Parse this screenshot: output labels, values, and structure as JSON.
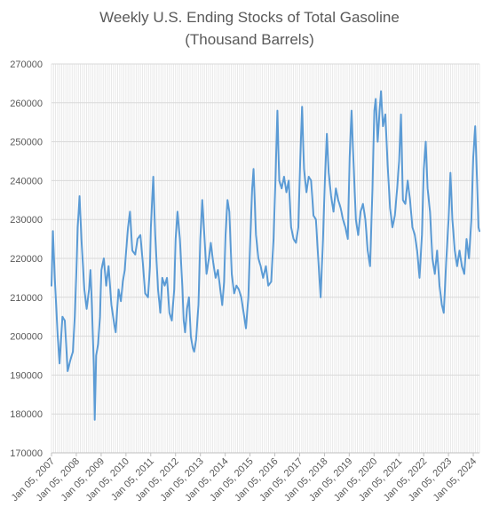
{
  "chart_data": {
    "type": "line",
    "title": "Weekly U.S. Ending Stocks of Total Gasoline",
    "subtitle": "(Thousand Barrels)",
    "xlabel": "",
    "ylabel": "",
    "ylim": [
      170000,
      270000
    ],
    "y_ticks": [
      "170000",
      "180000",
      "190000",
      "200000",
      "210000",
      "220000",
      "230000",
      "240000",
      "250000",
      "260000",
      "270000"
    ],
    "x_tick_labels": [
      "Jan 05, 2007",
      "Jan 05, 2008",
      "Jan 05, 2009",
      "Jan 05, 2010",
      "Jan 05, 2011",
      "Jan 05, 2012",
      "Jan 05, 2013",
      "Jan 05, 2014",
      "Jan 05, 2015",
      "Jan 05, 2016",
      "Jan 05, 2017",
      "Jan 05, 2018",
      "Jan 05, 2019",
      "Jan 05, 2020",
      "Jan 05, 2021",
      "Jan 05, 2022",
      "Jan 05, 2023",
      "Jan 05, 2024"
    ],
    "xlim": [
      "2007-01-05",
      "2024-04-05"
    ],
    "grid": true,
    "line_color": "#5b9bd5",
    "series": [
      {
        "points": [
          [
            "2007-01-05",
            213000
          ],
          [
            "2007-01-26",
            227000
          ],
          [
            "2007-02-23",
            215000
          ],
          [
            "2007-04-06",
            200000
          ],
          [
            "2007-05-04",
            193000
          ],
          [
            "2007-06-15",
            205000
          ],
          [
            "2007-07-20",
            204000
          ],
          [
            "2007-08-31",
            191000
          ],
          [
            "2007-10-12",
            194000
          ],
          [
            "2007-11-16",
            196000
          ],
          [
            "2007-12-14",
            205000
          ],
          [
            "2008-01-04",
            215000
          ],
          [
            "2008-01-25",
            228000
          ],
          [
            "2008-02-22",
            236000
          ],
          [
            "2008-03-21",
            225000
          ],
          [
            "2008-05-02",
            212000
          ],
          [
            "2008-06-06",
            207000
          ],
          [
            "2008-07-11",
            212000
          ],
          [
            "2008-08-01",
            217000
          ],
          [
            "2008-08-22",
            208000
          ],
          [
            "2008-09-19",
            192000
          ],
          [
            "2008-10-03",
            178500
          ],
          [
            "2008-10-24",
            195000
          ],
          [
            "2008-11-21",
            198000
          ],
          [
            "2008-12-19",
            205000
          ],
          [
            "2009-01-09",
            217000
          ],
          [
            "2009-02-13",
            220000
          ],
          [
            "2009-03-20",
            213000
          ],
          [
            "2009-04-24",
            218000
          ],
          [
            "2009-06-05",
            208000
          ],
          [
            "2009-07-17",
            203000
          ],
          [
            "2009-08-07",
            201000
          ],
          [
            "2009-09-18",
            212000
          ],
          [
            "2009-10-23",
            209000
          ],
          [
            "2009-11-20",
            214000
          ],
          [
            "2009-12-18",
            217000
          ],
          [
            "2010-01-08",
            222000
          ],
          [
            "2010-02-05",
            228000
          ],
          [
            "2010-03-05",
            232000
          ],
          [
            "2010-04-09",
            222000
          ],
          [
            "2010-05-21",
            221000
          ],
          [
            "2010-06-25",
            225000
          ],
          [
            "2010-08-06",
            226000
          ],
          [
            "2010-09-10",
            219000
          ],
          [
            "2010-10-15",
            211000
          ],
          [
            "2010-11-26",
            210000
          ],
          [
            "2010-12-24",
            218000
          ],
          [
            "2011-01-07",
            228000
          ],
          [
            "2011-02-11",
            241000
          ],
          [
            "2011-03-11",
            226000
          ],
          [
            "2011-04-22",
            212000
          ],
          [
            "2011-05-27",
            206000
          ],
          [
            "2011-06-24",
            215000
          ],
          [
            "2011-07-29",
            213000
          ],
          [
            "2011-09-02",
            215000
          ],
          [
            "2011-10-07",
            206000
          ],
          [
            "2011-11-11",
            204000
          ],
          [
            "2011-12-16",
            212000
          ],
          [
            "2012-01-06",
            225000
          ],
          [
            "2012-02-03",
            232000
          ],
          [
            "2012-03-09",
            225000
          ],
          [
            "2012-04-13",
            213000
          ],
          [
            "2012-05-04",
            204000
          ],
          [
            "2012-05-25",
            201000
          ],
          [
            "2012-06-22",
            207000
          ],
          [
            "2012-07-20",
            210000
          ],
          [
            "2012-08-17",
            200000
          ],
          [
            "2012-09-14",
            197000
          ],
          [
            "2012-10-05",
            196000
          ],
          [
            "2012-11-02",
            199000
          ],
          [
            "2012-12-07",
            208000
          ],
          [
            "2013-01-04",
            225000
          ],
          [
            "2013-02-01",
            235000
          ],
          [
            "2013-02-22",
            229000
          ],
          [
            "2013-04-05",
            216000
          ],
          [
            "2013-05-10",
            220000
          ],
          [
            "2013-06-07",
            224000
          ],
          [
            "2013-07-12",
            219000
          ],
          [
            "2013-08-16",
            215000
          ],
          [
            "2013-09-20",
            217000
          ],
          [
            "2013-10-25",
            212000
          ],
          [
            "2013-11-22",
            208000
          ],
          [
            "2013-12-20",
            214000
          ],
          [
            "2014-01-10",
            226000
          ],
          [
            "2014-02-07",
            235000
          ],
          [
            "2014-03-07",
            232000
          ],
          [
            "2014-04-11",
            216000
          ],
          [
            "2014-05-16",
            211000
          ],
          [
            "2014-06-20",
            213000
          ],
          [
            "2014-07-25",
            212000
          ],
          [
            "2014-08-29",
            210000
          ],
          [
            "2014-10-03",
            206000
          ],
          [
            "2014-11-07",
            202000
          ],
          [
            "2014-12-12",
            210000
          ],
          [
            "2015-01-09",
            225000
          ],
          [
            "2015-02-06",
            238000
          ],
          [
            "2015-02-27",
            243000
          ],
          [
            "2015-04-03",
            226000
          ],
          [
            "2015-05-08",
            220000
          ],
          [
            "2015-06-12",
            218000
          ],
          [
            "2015-07-17",
            215000
          ],
          [
            "2015-08-28",
            218000
          ],
          [
            "2015-10-02",
            213000
          ],
          [
            "2015-11-13",
            214000
          ],
          [
            "2015-12-18",
            225000
          ],
          [
            "2016-01-15",
            240000
          ],
          [
            "2016-02-12",
            258000
          ],
          [
            "2016-03-11",
            240000
          ],
          [
            "2016-04-15",
            238000
          ],
          [
            "2016-05-20",
            241000
          ],
          [
            "2016-06-24",
            237000
          ],
          [
            "2016-07-29",
            240000
          ],
          [
            "2016-09-02",
            228000
          ],
          [
            "2016-10-07",
            225000
          ],
          [
            "2016-11-11",
            224000
          ],
          [
            "2016-12-16",
            228000
          ],
          [
            "2017-01-13",
            245000
          ],
          [
            "2017-02-10",
            259000
          ],
          [
            "2017-03-10",
            243000
          ],
          [
            "2017-04-14",
            237000
          ],
          [
            "2017-05-19",
            241000
          ],
          [
            "2017-06-23",
            240000
          ],
          [
            "2017-07-28",
            231000
          ],
          [
            "2017-09-01",
            230000
          ],
          [
            "2017-10-06",
            220000
          ],
          [
            "2017-11-10",
            210000
          ],
          [
            "2017-12-15",
            225000
          ],
          [
            "2018-01-12",
            240000
          ],
          [
            "2018-02-09",
            252000
          ],
          [
            "2018-03-09",
            242000
          ],
          [
            "2018-04-13",
            236000
          ],
          [
            "2018-05-18",
            232000
          ],
          [
            "2018-06-22",
            238000
          ],
          [
            "2018-07-27",
            235000
          ],
          [
            "2018-08-31",
            233000
          ],
          [
            "2018-10-05",
            230000
          ],
          [
            "2018-11-09",
            228000
          ],
          [
            "2018-12-14",
            225000
          ],
          [
            "2019-01-11",
            246000
          ],
          [
            "2019-02-08",
            258000
          ],
          [
            "2019-03-08",
            245000
          ],
          [
            "2019-04-12",
            230000
          ],
          [
            "2019-05-17",
            226000
          ],
          [
            "2019-06-21",
            232000
          ],
          [
            "2019-07-26",
            234000
          ],
          [
            "2019-08-30",
            230000
          ],
          [
            "2019-10-04",
            222000
          ],
          [
            "2019-11-08",
            218000
          ],
          [
            "2019-12-13",
            238000
          ],
          [
            "2020-01-10",
            258000
          ],
          [
            "2020-01-31",
            261000
          ],
          [
            "2020-02-28",
            250000
          ],
          [
            "2020-03-27",
            258000
          ],
          [
            "2020-04-17",
            263000
          ],
          [
            "2020-05-15",
            254000
          ],
          [
            "2020-06-19",
            257000
          ],
          [
            "2020-07-24",
            244000
          ],
          [
            "2020-08-28",
            233000
          ],
          [
            "2020-10-02",
            228000
          ],
          [
            "2020-11-06",
            231000
          ],
          [
            "2020-12-11",
            238000
          ],
          [
            "2021-01-08",
            245000
          ],
          [
            "2021-02-05",
            257000
          ],
          [
            "2021-03-05",
            235000
          ],
          [
            "2021-04-09",
            234000
          ],
          [
            "2021-05-14",
            240000
          ],
          [
            "2021-06-18",
            235000
          ],
          [
            "2021-07-23",
            228000
          ],
          [
            "2021-08-27",
            226000
          ],
          [
            "2021-10-01",
            222000
          ],
          [
            "2021-11-05",
            215000
          ],
          [
            "2021-12-10",
            226000
          ],
          [
            "2022-01-07",
            243000
          ],
          [
            "2022-02-04",
            250000
          ],
          [
            "2022-03-04",
            238000
          ],
          [
            "2022-04-08",
            232000
          ],
          [
            "2022-05-13",
            220000
          ],
          [
            "2022-06-17",
            216000
          ],
          [
            "2022-07-22",
            222000
          ],
          [
            "2022-08-26",
            213000
          ],
          [
            "2022-09-30",
            208000
          ],
          [
            "2022-10-28",
            206000
          ],
          [
            "2022-12-02",
            219000
          ],
          [
            "2023-01-06",
            230000
          ],
          [
            "2023-02-03",
            242000
          ],
          [
            "2023-03-03",
            230000
          ],
          [
            "2023-04-07",
            222000
          ],
          [
            "2023-05-12",
            218000
          ],
          [
            "2023-06-16",
            222000
          ],
          [
            "2023-07-21",
            218000
          ],
          [
            "2023-08-25",
            216000
          ],
          [
            "2023-09-29",
            225000
          ],
          [
            "2023-11-03",
            220000
          ],
          [
            "2023-12-08",
            230000
          ],
          [
            "2024-01-05",
            246000
          ],
          [
            "2024-02-02",
            254000
          ],
          [
            "2024-03-01",
            240000
          ],
          [
            "2024-03-22",
            228000
          ],
          [
            "2024-04-05",
            227000
          ]
        ]
      }
    ]
  }
}
